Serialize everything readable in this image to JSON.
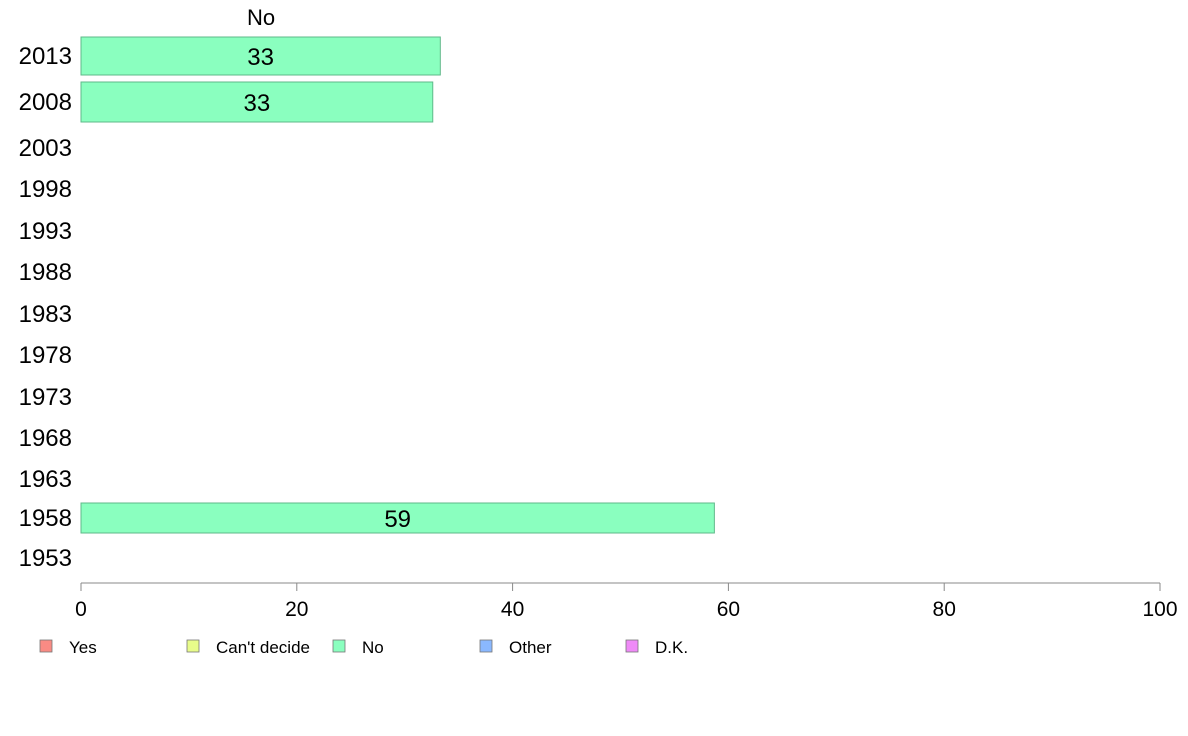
{
  "chart_data": {
    "type": "bar",
    "orientation": "horizontal",
    "title": "No",
    "categories": [
      "2013",
      "2008",
      "2003",
      "1998",
      "1993",
      "1988",
      "1983",
      "1978",
      "1973",
      "1968",
      "1963",
      "1958",
      "1953"
    ],
    "series": [
      {
        "name": "No",
        "color": "#8affbf",
        "values": [
          33.3,
          32.6,
          null,
          null,
          null,
          null,
          null,
          null,
          null,
          null,
          null,
          58.7,
          null
        ],
        "labels": [
          "33",
          "33",
          "",
          "",
          "",
          "",
          "",
          "",
          "",
          "",
          "",
          "59",
          ""
        ]
      }
    ],
    "xlim": [
      0,
      100
    ],
    "xticks": [
      "0",
      "20",
      "40",
      "60",
      "80",
      "100"
    ],
    "grid": false,
    "legend": {
      "placement": "bottom",
      "items": [
        {
          "label": "Yes",
          "color": "#f98b84"
        },
        {
          "label": "Can't decide",
          "color": "#e8fc8a"
        },
        {
          "label": "No",
          "color": "#8affbf"
        },
        {
          "label": "Other",
          "color": "#8ab8ff"
        },
        {
          "label": "D.K.",
          "color": "#ef8af7"
        }
      ]
    }
  }
}
